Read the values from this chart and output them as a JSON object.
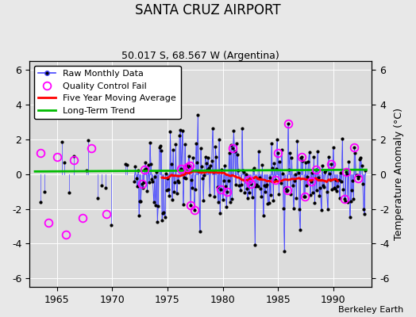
{
  "title": "SANTA CRUZ AIRPORT",
  "subtitle": "50.017 S, 68.567 W (Argentina)",
  "ylabel": "Temperature Anomaly (°C)",
  "xlabel_credit": "Berkeley Earth",
  "xlim": [
    1962.5,
    1993.5
  ],
  "ylim": [
    -6.5,
    6.5
  ],
  "yticks": [
    -6,
    -4,
    -2,
    0,
    2,
    4,
    6
  ],
  "xticks": [
    1965,
    1970,
    1975,
    1980,
    1985,
    1990
  ],
  "background_color": "#e8e8e8",
  "plot_bg_color": "#dcdcdc",
  "line_color": "#4444ff",
  "marker_color": "#000000",
  "qc_color": "#ff00ff",
  "moving_avg_color": "#ff0000",
  "trend_color": "#00bb00",
  "figsize": [
    5.24,
    4.0
  ],
  "dpi": 100
}
